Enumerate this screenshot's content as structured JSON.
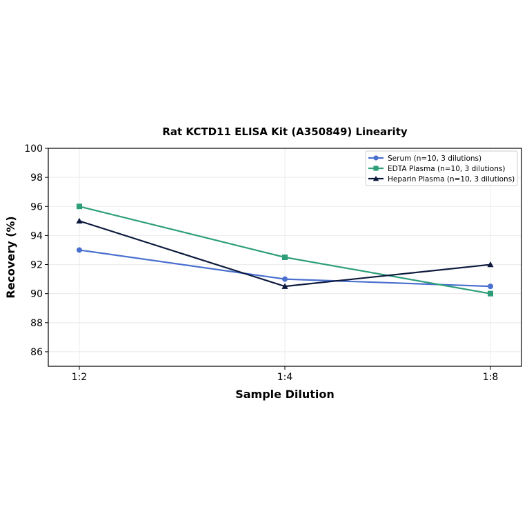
{
  "chart_data": {
    "type": "line",
    "title": "Rat KCTD11 ELISA Kit (A350849) Linearity",
    "xlabel": "Sample Dilution",
    "ylabel": "Recovery (%)",
    "categories": [
      "1:2",
      "1:4",
      "1:8"
    ],
    "ylim": [
      85,
      100
    ],
    "yticks": [
      86,
      88,
      90,
      92,
      94,
      96,
      98,
      100
    ],
    "grid": true,
    "legend_position": "top-right",
    "series": [
      {
        "name": "Serum (n=10, 3 dilutions)",
        "values": [
          93,
          91,
          90.5
        ],
        "color": "#4a6fcf",
        "marker": "circle"
      },
      {
        "name": "EDTA Plasma (n=10, 3 dilutions)",
        "values": [
          96,
          92.5,
          90
        ],
        "color": "#2e9e7a",
        "marker": "square"
      },
      {
        "name": "Heparin Plasma (n=10, 3 dilutions)",
        "values": [
          95,
          90.5,
          92
        ],
        "color": "#0d1a3d",
        "marker": "triangle"
      }
    ]
  }
}
